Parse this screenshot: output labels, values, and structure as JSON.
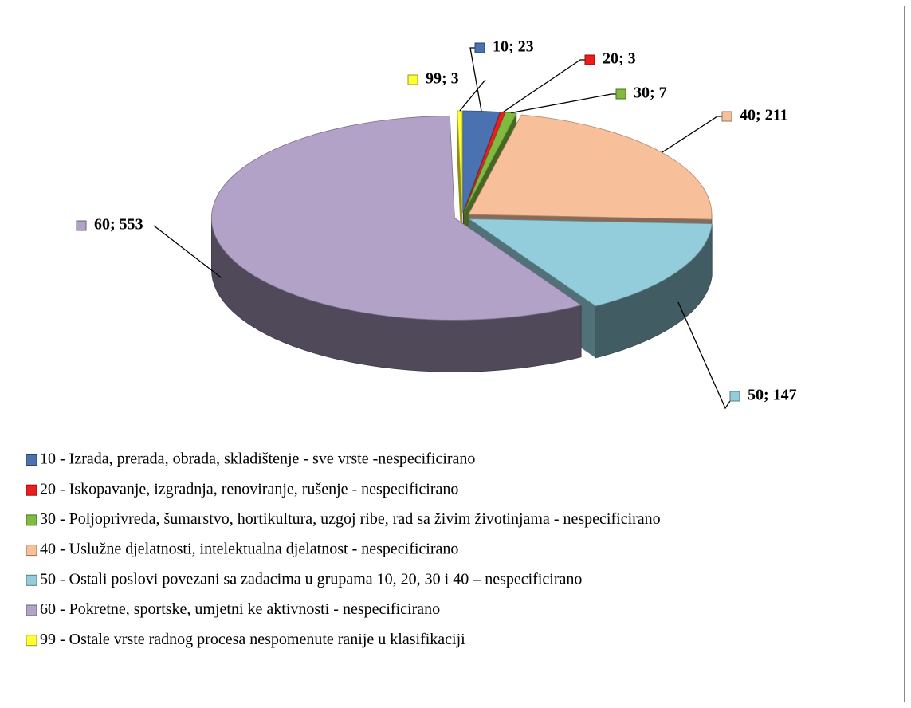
{
  "chart_data": {
    "type": "pie",
    "categories": [
      "10 - Izrada, prerada, obrada, skladištenje - sve vrste -nespecificirano",
      "20 - Iskopavanje, izgradnja, renoviranje, rušenje - nespecificirano",
      "30 - Poljoprivreda, šumarstvo, hortikultura, uzgoj ribe, rad sa živim životinjama - nespecificirano",
      "40 - Uslužne djelatnosti, intelektualna djelatnost - nespecificirano",
      "50 - Ostali poslovi povezani sa zadacima u grupama 10, 20, 30 i 40 – nespecificirano",
      "60 - Pokretne, sportske, umjetni  ke aktivnosti - nespecificirano",
      "99 - Ostale vrste radnog procesa nespomenute ranije u klasifikaciji"
    ],
    "values": [
      23,
      3,
      7,
      211,
      147,
      553,
      3
    ],
    "value_labels": [
      "10; 23",
      "20; 3",
      "30; 7",
      "40; 211",
      "50; 147",
      "60; 553",
      "99; 3"
    ],
    "colors": [
      "#4a72b0",
      "#ee1c1c",
      "#80bb3f",
      "#f8c09a",
      "#93cddc",
      "#b2a2c8",
      "#ffff33"
    ],
    "legend": "bottom"
  }
}
